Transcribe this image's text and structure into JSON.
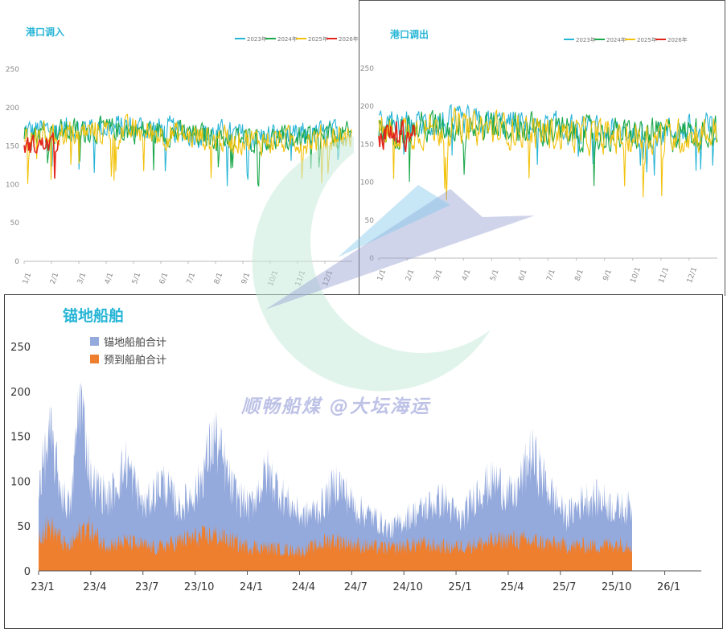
{
  "colors": {
    "y2023": "#27b5d6",
    "y2024": "#1aa84a",
    "y2025": "#f2c20c",
    "y2026": "#e3241b",
    "anchored": "#94a9dc",
    "expected": "#ee7f2f",
    "title": "#27b5d6"
  },
  "watermark": {
    "text": "顺畅船煤 @大坛海运"
  },
  "chart_data": [
    {
      "type": "line",
      "title": "港口调入",
      "ylim": [
        0,
        250
      ],
      "yticks": [
        0,
        50,
        100,
        150,
        200,
        250
      ],
      "xticks": [
        "1/1",
        "2/1",
        "3/1",
        "4/1",
        "5/1",
        "6/1",
        "7/1",
        "8/1",
        "9/1",
        "10/1",
        "11/1",
        "12/1"
      ],
      "legend_position": "top-right",
      "series": [
        {
          "name": "2023年",
          "level": 168,
          "spread": 20,
          "days": 365
        },
        {
          "name": "2024年",
          "level": 165,
          "spread": 18,
          "days": 366
        },
        {
          "name": "2025年",
          "level": 163,
          "spread": 20,
          "days": 365
        },
        {
          "name": "2026年",
          "level": 150,
          "spread": 14,
          "days": 40
        }
      ]
    },
    {
      "type": "line",
      "title": "港口调出",
      "ylim": [
        0,
        250
      ],
      "yticks": [
        0,
        50,
        100,
        150,
        200,
        250
      ],
      "xticks": [
        "1/1",
        "2/1",
        "3/1",
        "4/1",
        "5/1",
        "6/1",
        "7/1",
        "8/1",
        "9/1",
        "10/1",
        "11/1",
        "12/1"
      ],
      "legend_position": "top-right",
      "series": [
        {
          "name": "2023年",
          "level": 172,
          "spread": 22,
          "days": 365
        },
        {
          "name": "2024年",
          "level": 168,
          "spread": 24,
          "days": 366
        },
        {
          "name": "2025年",
          "level": 165,
          "spread": 26,
          "days": 365
        },
        {
          "name": "2026年",
          "level": 160,
          "spread": 22,
          "days": 40
        }
      ]
    },
    {
      "type": "area",
      "title": "锚地船舶",
      "ylim": [
        0,
        250
      ],
      "yticks": [
        0,
        50,
        100,
        150,
        200,
        250
      ],
      "xticks": [
        "23/1",
        "23/4",
        "23/7",
        "23/10",
        "24/1",
        "24/4",
        "24/7",
        "24/10",
        "25/1",
        "25/4",
        "25/7",
        "25/10",
        "26/1"
      ],
      "legend_position": "top-left",
      "series": [
        {
          "name": "锚地船舶合计",
          "anchors": [
            [
              0,
              100
            ],
            [
              20,
              150
            ],
            [
              40,
              85
            ],
            [
              55,
              70
            ],
            [
              70,
              200
            ],
            [
              90,
              100
            ],
            [
              120,
              80
            ],
            [
              150,
              120
            ],
            [
              180,
              70
            ],
            [
              210,
              100
            ],
            [
              240,
              70
            ],
            [
              270,
              90
            ],
            [
              300,
              150
            ],
            [
              330,
              90
            ],
            [
              360,
              70
            ],
            [
              390,
              110
            ],
            [
              420,
              80
            ],
            [
              450,
              60
            ],
            [
              480,
              70
            ],
            [
              510,
              100
            ],
            [
              540,
              70
            ],
            [
              570,
              60
            ],
            [
              600,
              45
            ],
            [
              630,
              60
            ],
            [
              660,
              70
            ],
            [
              690,
              80
            ],
            [
              720,
              55
            ],
            [
              750,
              90
            ],
            [
              780,
              100
            ],
            [
              810,
              80
            ],
            [
              840,
              130
            ],
            [
              870,
              90
            ],
            [
              900,
              60
            ],
            [
              930,
              80
            ],
            [
              960,
              80
            ],
            [
              980,
              70
            ]
          ]
        },
        {
          "name": "预到船舶合计",
          "anchors": [
            [
              0,
              40
            ],
            [
              20,
              50
            ],
            [
              50,
              25
            ],
            [
              80,
              50
            ],
            [
              110,
              30
            ],
            [
              150,
              32
            ],
            [
              200,
              25
            ],
            [
              250,
              35
            ],
            [
              300,
              40
            ],
            [
              350,
              28
            ],
            [
              400,
              25
            ],
            [
              450,
              22
            ],
            [
              500,
              35
            ],
            [
              550,
              28
            ],
            [
              600,
              25
            ],
            [
              650,
              30
            ],
            [
              700,
              26
            ],
            [
              750,
              30
            ],
            [
              800,
              35
            ],
            [
              850,
              32
            ],
            [
              900,
              28
            ],
            [
              950,
              28
            ],
            [
              980,
              30
            ]
          ]
        }
      ]
    }
  ]
}
